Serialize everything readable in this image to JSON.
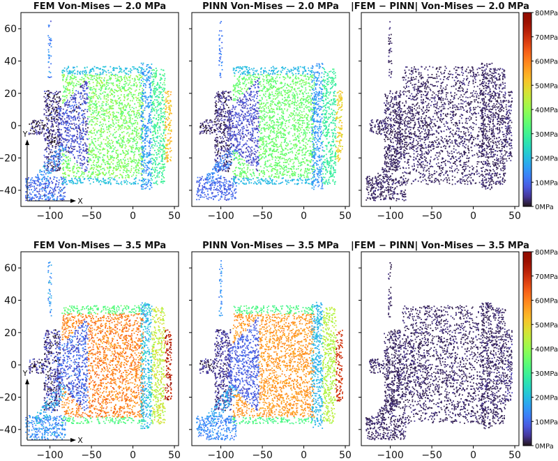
{
  "chart_data": {
    "type": "scatter",
    "description_kind": "finite element stress field comparison",
    "colormap": "turbo",
    "x_ticks": [
      -100,
      -50,
      0,
      50
    ],
    "y_ticks": [
      60,
      40,
      20,
      0,
      -20,
      -40
    ],
    "xlim": [
      -135,
      55
    ],
    "ylim": [
      -50,
      70
    ],
    "colorbar": {
      "labels": [
        "80MPa",
        "70MPa",
        "60MPa",
        "50MPa",
        "40MPa",
        "30MPa",
        "20MPa",
        "10MPa",
        "0MPa"
      ],
      "range": [
        0,
        80
      ]
    },
    "axis_indicator": {
      "x": "X",
      "y": "Y"
    },
    "panels": [
      {
        "title": "FEM Von-Mises — 2.0 MPa",
        "row": 0,
        "col": 0,
        "kind": "fem",
        "load": 2.0,
        "colorbar": false,
        "show_yticks": true,
        "show_axis_indicator": true
      },
      {
        "title": "PINN Von-Mises — 2.0 MPa",
        "row": 0,
        "col": 1,
        "kind": "pinn",
        "load": 2.0,
        "colorbar": false,
        "show_yticks": false,
        "show_axis_indicator": false
      },
      {
        "title": "|FEM − PINN| Von-Mises — 2.0 MPa",
        "row": 0,
        "col": 2,
        "kind": "diff",
        "load": 2.0,
        "colorbar": true,
        "show_yticks": false,
        "show_axis_indicator": false
      },
      {
        "title": "FEM Von-Mises — 3.5 MPa",
        "row": 1,
        "col": 0,
        "kind": "fem",
        "load": 3.5,
        "colorbar": false,
        "show_yticks": true,
        "show_axis_indicator": true
      },
      {
        "title": "PINN Von-Mises — 3.5 MPa",
        "row": 1,
        "col": 1,
        "kind": "pinn",
        "load": 3.5,
        "colorbar": false,
        "show_yticks": false,
        "show_axis_indicator": false
      },
      {
        "title": "|FEM − PINN| Von-Mises — 3.5 MPa",
        "row": 1,
        "col": 2,
        "kind": "diff",
        "load": 3.5,
        "colorbar": true,
        "show_yticks": false,
        "show_axis_indicator": false
      }
    ],
    "regions": [
      {
        "name": "vertical-post",
        "x": [
          -103,
          -99
        ],
        "y": [
          30,
          65
        ],
        "level_fem_2": 12,
        "level_fem_35": 15,
        "density": 0.6
      },
      {
        "name": "left-block",
        "x": [
          -108,
          -88
        ],
        "y": [
          -28,
          22
        ],
        "level_fem_2": 3,
        "level_fem_35": 4,
        "density": 0.9
      },
      {
        "name": "left-tab",
        "x": [
          -126,
          -108
        ],
        "y": [
          -5,
          4
        ],
        "level_fem_2": 2,
        "level_fem_35": 3,
        "density": 1.0
      },
      {
        "name": "bottom-left-block",
        "x": [
          -130,
          -82
        ],
        "y": [
          -46,
          -31
        ],
        "level_fem_2": 10,
        "level_fem_35": 14,
        "density": 0.85
      },
      {
        "name": "diagonal-strut",
        "x": [
          -118,
          -80
        ],
        "y": [
          -36,
          -12
        ],
        "level_fem_2": 14,
        "level_fem_35": 18,
        "density": 0.7
      },
      {
        "name": "main-body",
        "x": [
          -86,
          12
        ],
        "y": [
          -36,
          37
        ],
        "level_fem_2": 37,
        "level_fem_35": 60,
        "density": 0.75
      },
      {
        "name": "cone",
        "x": [
          -92,
          -55
        ],
        "y": [
          -28,
          30
        ],
        "level_fem_2": 7,
        "level_fem_35": 9,
        "density": 0.8
      },
      {
        "name": "flange",
        "x": [
          9,
          22
        ],
        "y": [
          -39,
          39
        ],
        "level_fem_2": 16,
        "level_fem_35": 20,
        "density": 0.85
      },
      {
        "name": "right-body",
        "x": [
          22,
          38
        ],
        "y": [
          -36,
          36
        ],
        "level_fem_2": 30,
        "level_fem_35": 45,
        "density": 0.8
      },
      {
        "name": "right-end",
        "x": [
          38,
          46
        ],
        "y": [
          -22,
          22
        ],
        "level_fem_2": 52,
        "level_fem_35": 72,
        "density": 0.85
      }
    ]
  }
}
